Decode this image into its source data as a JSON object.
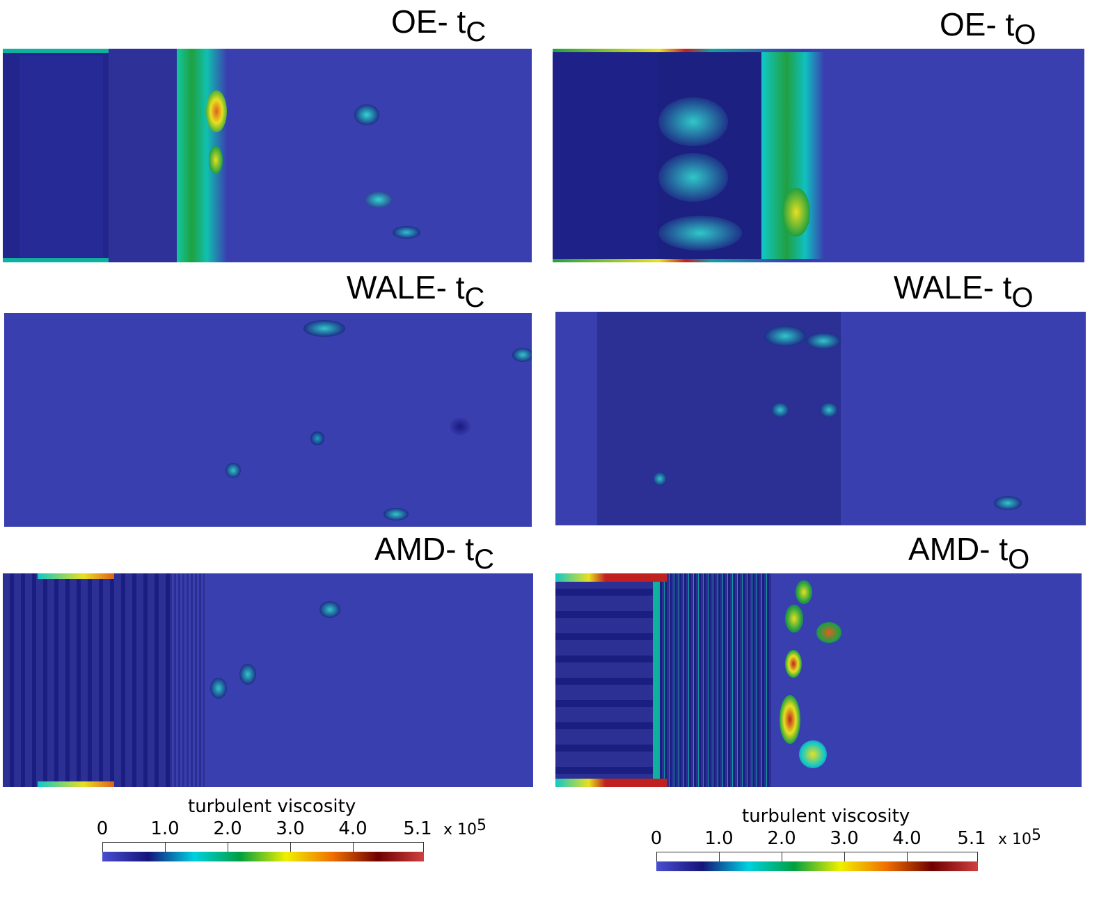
{
  "panels": [
    {
      "id": "oe-tc",
      "title": "OE- t",
      "sub": "C"
    },
    {
      "id": "oe-to",
      "title": "OE- t",
      "sub": "O"
    },
    {
      "id": "wale-tc",
      "title": "WALE- t",
      "sub": "C"
    },
    {
      "id": "wale-to",
      "title": "WALE- t",
      "sub": "O"
    },
    {
      "id": "amd-tc",
      "title": "AMD- t",
      "sub": "C"
    },
    {
      "id": "amd-to",
      "title": "AMD- t",
      "sub": "O"
    }
  ],
  "colorbar": {
    "title": "turbulent viscosity",
    "ticks": [
      "0",
      "1.0",
      "2.0",
      "3.0",
      "4.0",
      "5.1"
    ],
    "tick_values": [
      0,
      1.0,
      2.0,
      3.0,
      4.0,
      5.1
    ],
    "range": [
      0,
      5.1
    ],
    "scale_text": "x 10",
    "scale_exp": "5",
    "colors": [
      "#4a4ed0",
      "#15157a",
      "#00d0e0",
      "#00a040",
      "#f0f000",
      "#f07000",
      "#700000",
      "#d04040"
    ]
  },
  "colors": {
    "field_base": "#3a3fb0",
    "dark": "#1a1a80",
    "cyan": "#10c8c8",
    "green": "#20a040",
    "yellow": "#e8e020",
    "red": "#c02020"
  }
}
